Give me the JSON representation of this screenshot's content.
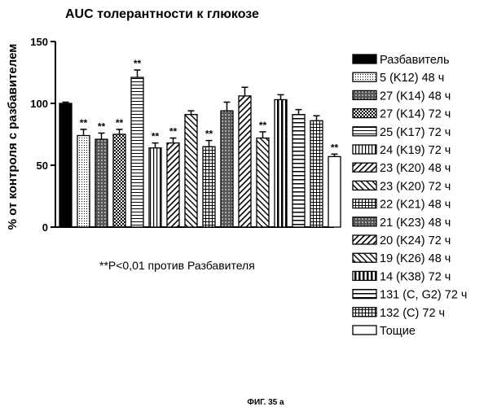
{
  "chart_data": {
    "type": "bar",
    "title": "AUC толерантности к глюкозе",
    "xlabel": "",
    "ylabel": "% от контроля с разбавителем",
    "ylim": [
      0,
      150
    ],
    "yticks": [
      "0",
      "50",
      "100",
      "150"
    ],
    "categories": [
      "Разбавитель",
      "5 (K12) 48 ч",
      "27 (K14) 48 ч",
      "27 (K14) 72 ч",
      "25 (K17) 72 ч",
      "24 (K19) 72 ч",
      "23 (K20) 48 ч",
      "23 (K20) 72 ч",
      "22 (K21) 48 ч",
      "21 (K23) 48 ч",
      "20 (K24) 72 ч",
      "19 (K26) 48 ч",
      "14 (K38) 72 ч",
      "131 (C, G2) 72 ч",
      "132 (C) 72 ч",
      "Тощие"
    ],
    "values": [
      100,
      74,
      71,
      75,
      121,
      64,
      68,
      91,
      65,
      94,
      106,
      72,
      103,
      91,
      86,
      57
    ],
    "errors": [
      1,
      5,
      5,
      4,
      6,
      4,
      4,
      3,
      5,
      7,
      7,
      5,
      4,
      4,
      4,
      2
    ],
    "significance": [
      "",
      "**",
      "**",
      "**",
      "**",
      "**",
      "**",
      "",
      "**",
      "",
      "",
      "**",
      "",
      "",
      "",
      "**"
    ],
    "patterns": [
      "solid",
      "dots",
      "dense",
      "checker",
      "hstripe",
      "vstripe",
      "diag",
      "diag2",
      "grid",
      "dense",
      "diag",
      "diag2",
      "vbold",
      "hbold",
      "grid",
      "empty"
    ],
    "annotation": "**P<0,01 против Разбавителя",
    "caption": "ФИГ. 35 а"
  }
}
